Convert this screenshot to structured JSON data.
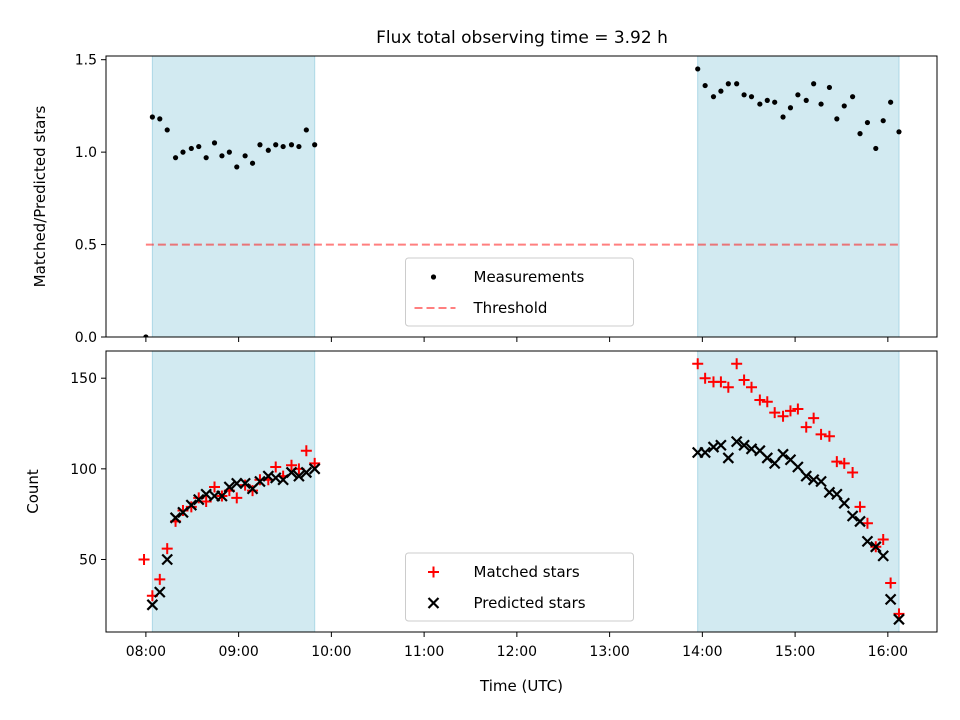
{
  "title": "Flux total observing time = 3.92 h",
  "colors": {
    "shade": "#add8e6",
    "measure": "#000000",
    "threshold": "#ff0000",
    "matched": "#ff0000",
    "predicted": "#000000"
  },
  "chart_data": [
    {
      "type": "scatter",
      "name": "top",
      "title": "Flux total observing time = 3.92 h",
      "xlabel": "",
      "ylabel": "Matched/Predicted stars",
      "xlim": [
        7.57,
        16.53
      ],
      "ylim": [
        0.0,
        1.52
      ],
      "yticks": [
        0.0,
        0.5,
        1.0,
        1.5
      ],
      "ytick_labels": [
        "0.0",
        "0.5",
        "1.0",
        "1.5"
      ],
      "shaded_ranges": [
        [
          8.07,
          9.82
        ],
        [
          13.95,
          16.12
        ]
      ],
      "threshold": 0.5,
      "threshold_xrange": [
        8.0,
        16.12
      ],
      "legend": {
        "location": "lower center",
        "entries": [
          "Measurements",
          "Threshold"
        ]
      },
      "series": [
        {
          "name": "Measurements",
          "marker": "dot",
          "x": [
            8.0,
            8.07,
            8.15,
            8.23,
            8.32,
            8.4,
            8.49,
            8.57,
            8.65,
            8.74,
            8.82,
            8.9,
            8.98,
            9.07,
            9.15,
            9.23,
            9.32,
            9.4,
            9.48,
            9.57,
            9.65,
            9.73,
            9.82,
            13.95,
            14.03,
            14.12,
            14.2,
            14.28,
            14.37,
            14.45,
            14.53,
            14.62,
            14.7,
            14.78,
            14.87,
            14.95,
            15.03,
            15.12,
            15.2,
            15.28,
            15.37,
            15.45,
            15.53,
            15.62,
            15.7,
            15.78,
            15.87,
            15.95,
            16.03,
            16.12
          ],
          "y": [
            0.0,
            1.19,
            1.18,
            1.12,
            0.97,
            1.0,
            1.02,
            1.03,
            0.97,
            1.05,
            0.98,
            1.0,
            0.92,
            0.98,
            0.94,
            1.04,
            1.01,
            1.04,
            1.03,
            1.04,
            1.03,
            1.12,
            1.04,
            1.45,
            1.36,
            1.3,
            1.33,
            1.37,
            1.37,
            1.31,
            1.3,
            1.26,
            1.28,
            1.27,
            1.19,
            1.24,
            1.31,
            1.28,
            1.37,
            1.26,
            1.35,
            1.18,
            1.25,
            1.3,
            1.1,
            1.16,
            1.02,
            1.17,
            1.27,
            1.11
          ]
        }
      ]
    },
    {
      "type": "scatter",
      "name": "bottom",
      "xlabel": "Time (UTC)",
      "ylabel": "Count",
      "xlim": [
        7.57,
        16.53
      ],
      "ylim": [
        10,
        165
      ],
      "yticks": [
        50,
        100,
        150
      ],
      "ytick_labels": [
        "50",
        "100",
        "150"
      ],
      "xticks": [
        8,
        9,
        10,
        11,
        12,
        13,
        14,
        15,
        16
      ],
      "xtick_labels": [
        "08:00",
        "09:00",
        "10:00",
        "11:00",
        "12:00",
        "13:00",
        "14:00",
        "15:00",
        "16:00"
      ],
      "shaded_ranges": [
        [
          8.07,
          9.82
        ],
        [
          13.95,
          16.12
        ]
      ],
      "legend": {
        "location": "lower center",
        "entries": [
          "Matched stars",
          "Predicted stars"
        ]
      },
      "series": [
        {
          "name": "Matched stars",
          "marker": "plus",
          "x": [
            7.98,
            8.07,
            8.15,
            8.23,
            8.32,
            8.4,
            8.49,
            8.57,
            8.65,
            8.74,
            8.82,
            8.9,
            8.98,
            9.07,
            9.15,
            9.23,
            9.32,
            9.4,
            9.48,
            9.57,
            9.65,
            9.73,
            9.82,
            13.95,
            14.03,
            14.12,
            14.2,
            14.28,
            14.37,
            14.45,
            14.53,
            14.62,
            14.7,
            14.78,
            14.87,
            14.95,
            15.03,
            15.12,
            15.2,
            15.28,
            15.37,
            15.45,
            15.53,
            15.62,
            15.7,
            15.78,
            15.87,
            15.95,
            16.03,
            16.12
          ],
          "y": [
            50,
            30,
            39,
            56,
            71,
            77,
            79,
            84,
            82,
            90,
            85,
            88,
            84,
            91,
            88,
            94,
            94,
            101,
            96,
            102,
            100,
            110,
            103,
            158,
            150,
            148,
            148,
            145,
            158,
            149,
            145,
            138,
            137,
            131,
            129,
            132,
            133,
            123,
            128,
            119,
            118,
            104,
            103,
            98,
            79,
            70,
            57,
            61,
            37,
            20
          ]
        },
        {
          "name": "Predicted stars",
          "marker": "x",
          "x": [
            8.07,
            8.15,
            8.23,
            8.32,
            8.4,
            8.49,
            8.57,
            8.65,
            8.74,
            8.82,
            8.9,
            8.98,
            9.07,
            9.15,
            9.23,
            9.32,
            9.4,
            9.48,
            9.57,
            9.65,
            9.73,
            9.82,
            13.95,
            14.03,
            14.12,
            14.2,
            14.28,
            14.37,
            14.45,
            14.53,
            14.62,
            14.7,
            14.78,
            14.87,
            14.95,
            15.03,
            15.12,
            15.2,
            15.28,
            15.37,
            15.45,
            15.53,
            15.62,
            15.7,
            15.78,
            15.87,
            15.95,
            16.03,
            16.12
          ],
          "y": [
            25,
            32,
            50,
            73,
            76,
            80,
            83,
            86,
            85,
            85,
            90,
            92,
            92,
            89,
            93,
            96,
            95,
            94,
            98,
            96,
            98,
            100,
            109,
            109,
            112,
            113,
            106,
            115,
            113,
            111,
            110,
            106,
            103,
            108,
            105,
            101,
            96,
            94,
            93,
            87,
            86,
            81,
            74,
            71,
            60,
            57,
            52,
            28,
            17
          ]
        }
      ]
    }
  ]
}
